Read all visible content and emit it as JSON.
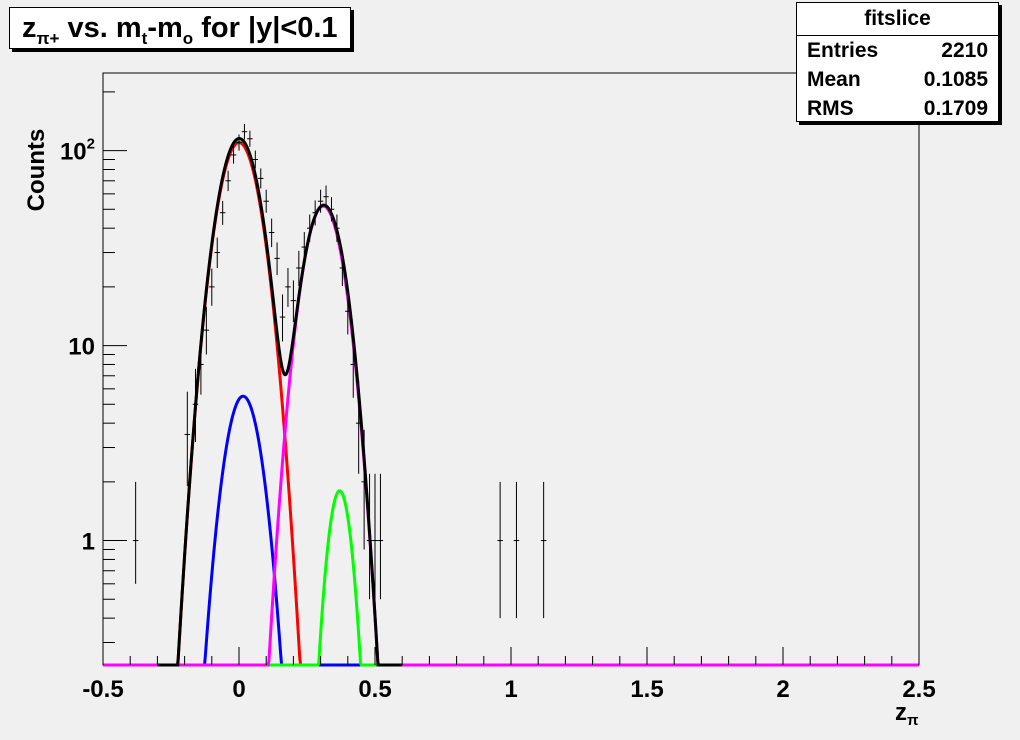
{
  "title": {
    "pre": "z",
    "pre_sub": "π+",
    "mid": " vs. m",
    "mid_sub": "t",
    "post": "-m",
    "post_sub": "o",
    "tail": " for |y|<0.1"
  },
  "stats": {
    "name": "fitslice",
    "rows": [
      {
        "label": "Entries",
        "value": "2210"
      },
      {
        "label": "Mean",
        "value": "0.1085"
      },
      {
        "label": "RMS",
        "value": "0.1709"
      }
    ]
  },
  "colors": {
    "background": "#f0f0f0",
    "total_fit": "#000000",
    "component_1": "#ff0000",
    "component_2": "#0000ff",
    "component_3": "#ff00ff",
    "component_4": "#00ff00"
  },
  "chart_data": {
    "type": "line",
    "title": "z_π+ vs. m_t-m_o for |y|<0.1",
    "xlabel_main": "z",
    "xlabel_sub": "π",
    "ylabel": "Counts",
    "xlim": [
      -0.5,
      2.5
    ],
    "ylim": [
      0.23,
      250
    ],
    "y_scale": "log",
    "x_ticks": [
      {
        "value": -0.5,
        "label": "-0.5"
      },
      {
        "value": 0,
        "label": "0"
      },
      {
        "value": 0.5,
        "label": "0.5"
      },
      {
        "value": 1,
        "label": "1"
      },
      {
        "value": 1.5,
        "label": "1.5"
      },
      {
        "value": 2,
        "label": "2"
      },
      {
        "value": 2.5,
        "label": "2.5"
      }
    ],
    "y_ticks": [
      {
        "value": 1,
        "label": "1"
      },
      {
        "value": 10,
        "label": "10"
      },
      {
        "value": 100,
        "label_base": "10",
        "label_exp": "2"
      }
    ],
    "grid": false,
    "histogram": {
      "x_err": 0.01,
      "points": [
        [
          -0.38,
          1,
          0.4,
          1.0
        ],
        [
          -0.19,
          3.5,
          1.6,
          2.3
        ],
        [
          -0.16,
          5,
          1.8,
          2.6
        ],
        [
          -0.14,
          8,
          2.4,
          3.2
        ],
        [
          -0.12,
          12,
          3.0,
          3.8
        ],
        [
          -0.1,
          20,
          4.0,
          4.8
        ],
        [
          -0.08,
          30,
          5.0,
          5.8
        ],
        [
          -0.06,
          48,
          6.4,
          7.2
        ],
        [
          -0.04,
          70,
          8.0,
          8.8
        ],
        [
          -0.02,
          95,
          9.3,
          10.2
        ],
        [
          0.0,
          110,
          10.0,
          11.0
        ],
        [
          0.02,
          125,
          11.0,
          12.0
        ],
        [
          0.04,
          115,
          10.5,
          11.5
        ],
        [
          0.06,
          90,
          9.0,
          10.0
        ],
        [
          0.08,
          72,
          8.0,
          9.0
        ],
        [
          0.1,
          55,
          7.0,
          8.0
        ],
        [
          0.12,
          38,
          6.0,
          6.8
        ],
        [
          0.14,
          28,
          5.0,
          5.8
        ],
        [
          0.16,
          14,
          3.5,
          4.3
        ],
        [
          0.18,
          20,
          4.2,
          5.0
        ],
        [
          0.2,
          17,
          3.8,
          4.6
        ],
        [
          0.22,
          25,
          4.8,
          5.6
        ],
        [
          0.24,
          32,
          5.4,
          6.2
        ],
        [
          0.26,
          40,
          6.0,
          7.0
        ],
        [
          0.28,
          48,
          6.7,
          7.5
        ],
        [
          0.3,
          55,
          7.0,
          8.0
        ],
        [
          0.32,
          58,
          7.2,
          8.2
        ],
        [
          0.34,
          50,
          6.7,
          7.7
        ],
        [
          0.36,
          40,
          6.0,
          7.0
        ],
        [
          0.38,
          25,
          4.8,
          5.6
        ],
        [
          0.4,
          15,
          3.6,
          4.4
        ],
        [
          0.42,
          8,
          2.6,
          3.4
        ],
        [
          0.44,
          4,
          1.8,
          2.6
        ],
        [
          0.46,
          2,
          1.1,
          1.7
        ],
        [
          0.48,
          1,
          0.5,
          1.2
        ],
        [
          0.5,
          1,
          0.5,
          1.2
        ],
        [
          0.52,
          1,
          0.5,
          1.2
        ],
        [
          0.96,
          1,
          0.6,
          1.0
        ],
        [
          1.02,
          1,
          0.6,
          1.0
        ],
        [
          1.12,
          1,
          0.6,
          1.0
        ]
      ]
    },
    "fits": [
      {
        "key": "component_1",
        "amp": 110,
        "mean": 0.0,
        "sigma": 0.064,
        "x_range": [
          -0.5,
          2.5
        ]
      },
      {
        "key": "component_2",
        "amp": 5.5,
        "mean": 0.015,
        "sigma": 0.056,
        "x_range": [
          -0.5,
          2.5
        ]
      },
      {
        "key": "component_3",
        "amp": 52,
        "mean": 0.31,
        "sigma": 0.061,
        "x_range": [
          -0.5,
          2.5
        ]
      },
      {
        "key": "component_4",
        "amp": 1.8,
        "mean": 0.37,
        "sigma": 0.038,
        "x_range": [
          -0.5,
          2.5
        ]
      },
      {
        "key": "total_fit",
        "sum_of": [
          "component_1",
          "component_2",
          "component_3",
          "component_4"
        ],
        "x_range": [
          -0.3,
          0.6
        ]
      }
    ]
  }
}
